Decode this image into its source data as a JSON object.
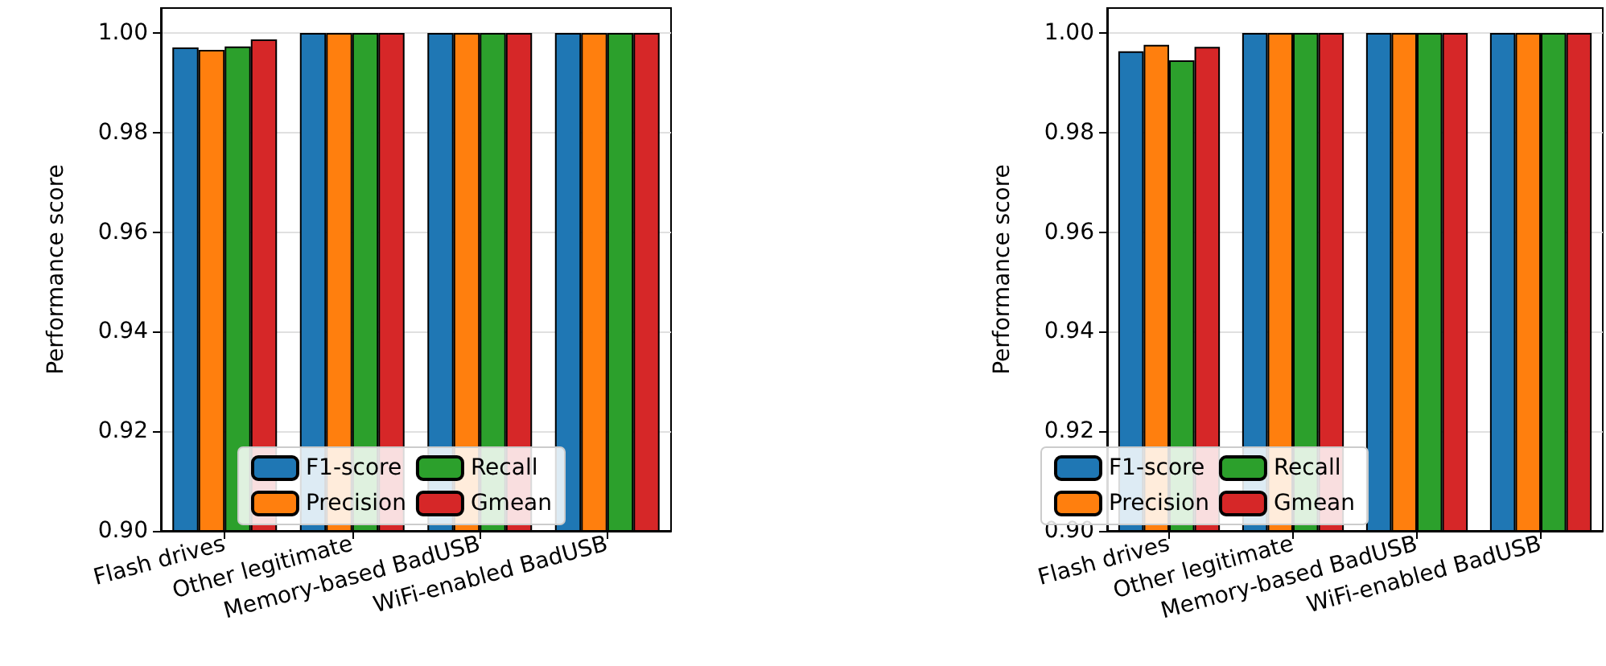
{
  "chart_data": [
    {
      "type": "bar",
      "ylabel": "Performance score",
      "categories": [
        "Flash drives",
        "Other legitimate",
        "Memory-based BadUSB",
        "WiFi-enabled BadUSB"
      ],
      "series": [
        {
          "name": "F1-score",
          "color": "#1f77b4",
          "values": [
            0.9971,
            1.0,
            1.0,
            1.0
          ]
        },
        {
          "name": "Precision",
          "color": "#ff7f0e",
          "values": [
            0.9966,
            1.0,
            1.0,
            1.0
          ]
        },
        {
          "name": "Recall",
          "color": "#2ca02c",
          "values": [
            0.9973,
            1.0,
            1.0,
            1.0
          ]
        },
        {
          "name": "Gmean",
          "color": "#d62728",
          "values": [
            0.9987,
            1.0,
            1.0,
            1.0
          ]
        }
      ],
      "ylim": [
        0.9,
        1.005
      ],
      "yticks": [
        {
          "value": 0.9,
          "label": "0.90"
        },
        {
          "value": 0.92,
          "label": "0.92"
        },
        {
          "value": 0.94,
          "label": "0.94"
        },
        {
          "value": 0.96,
          "label": "0.96"
        },
        {
          "value": 0.98,
          "label": "0.98"
        },
        {
          "value": 1.0,
          "label": "1.00"
        }
      ],
      "grid": "y",
      "legend": "bottom"
    },
    {
      "type": "bar",
      "ylabel": "Performance score",
      "categories": [
        "Flash drives",
        "Other legitimate",
        "Memory-based BadUSB",
        "WiFi-enabled BadUSB"
      ],
      "series": [
        {
          "name": "F1-score",
          "color": "#1f77b4",
          "values": [
            0.9963,
            1.0,
            1.0,
            1.0
          ]
        },
        {
          "name": "Precision",
          "color": "#ff7f0e",
          "values": [
            0.9976,
            1.0,
            1.0,
            1.0
          ]
        },
        {
          "name": "Recall",
          "color": "#2ca02c",
          "values": [
            0.9945,
            1.0,
            1.0,
            1.0
          ]
        },
        {
          "name": "Gmean",
          "color": "#d62728",
          "values": [
            0.9972,
            1.0,
            1.0,
            1.0
          ]
        }
      ],
      "ylim": [
        0.9,
        1.005
      ],
      "yticks": [
        {
          "value": 0.9,
          "label": "0.90"
        },
        {
          "value": 0.92,
          "label": "0.92"
        },
        {
          "value": 0.94,
          "label": "0.94"
        },
        {
          "value": 0.96,
          "label": "0.96"
        },
        {
          "value": 0.98,
          "label": "0.98"
        },
        {
          "value": 1.0,
          "label": "1.00"
        }
      ],
      "grid": "y",
      "legend": "bottom"
    }
  ]
}
